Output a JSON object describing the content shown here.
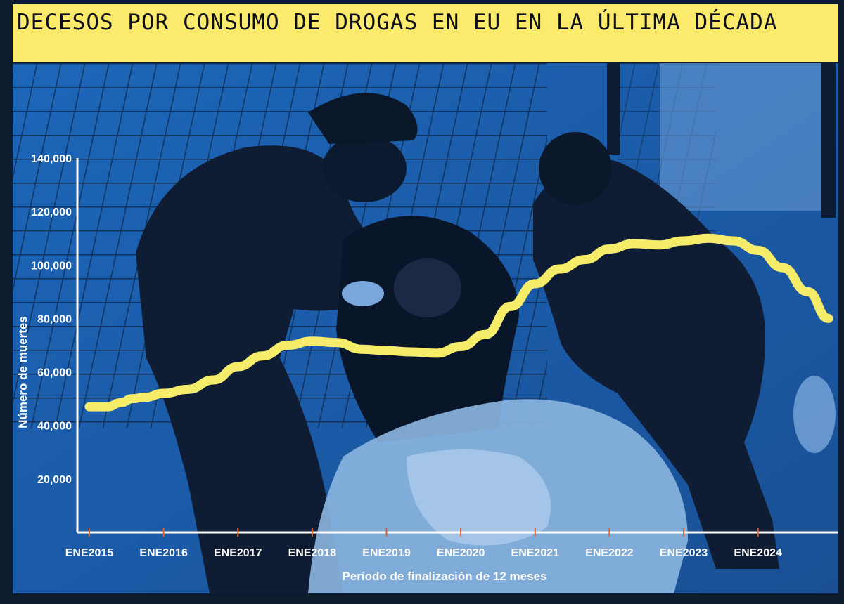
{
  "title": "DECESOS POR CONSUMO DE DROGAS EN EU EN LA ÚLTIMA DÉCADA",
  "colors": {
    "title_band": "#fbea6b",
    "line": "#f5ec6a",
    "axis": "#ffffff",
    "tick_marks": "#e0622a",
    "photo_tint": "#1b5fae"
  },
  "photo": {
    "description_icon": "photo-paramedics-icon"
  },
  "chart_data": {
    "type": "line",
    "title": "DECESOS POR CONSUMO DE DROGAS EN EU EN LA ÚLTIMA DÉCADA",
    "xlabel": "Período de finalización de 12 meses",
    "ylabel": "Número de muertes",
    "ylim": [
      0,
      140000
    ],
    "y_ticks": [
      {
        "value": 20000,
        "label": "20,000"
      },
      {
        "value": 40000,
        "label": "40,000"
      },
      {
        "value": 60000,
        "label": "60,000"
      },
      {
        "value": 80000,
        "label": "80,000"
      },
      {
        "value": 100000,
        "label": "100,000"
      },
      {
        "value": 120000,
        "label": "120,000"
      },
      {
        "value": 140000,
        "label": "140,000"
      }
    ],
    "x_ticks": [
      {
        "value": 2015.0,
        "label": "ENE2015"
      },
      {
        "value": 2016.0,
        "label": "ENE2016"
      },
      {
        "value": 2017.0,
        "label": "ENE2017"
      },
      {
        "value": 2018.0,
        "label": "ENE2018"
      },
      {
        "value": 2019.0,
        "label": "ENE2019"
      },
      {
        "value": 2020.0,
        "label": "ENE2020"
      },
      {
        "value": 2021.0,
        "label": "ENE2021"
      },
      {
        "value": 2022.0,
        "label": "ENE2022"
      },
      {
        "value": 2023.0,
        "label": "ENE2023"
      },
      {
        "value": 2024.0,
        "label": "ENE2024"
      }
    ],
    "xlim": [
      2015.0,
      2024.95
    ],
    "grid": false,
    "series": [
      {
        "points": [
          [
            2015.0,
            47000
          ],
          [
            2015.25,
            47000
          ],
          [
            2015.42,
            48500
          ],
          [
            2015.58,
            50000
          ],
          [
            2015.75,
            50500
          ],
          [
            2016.0,
            52000
          ],
          [
            2016.33,
            53500
          ],
          [
            2016.67,
            57000
          ],
          [
            2017.0,
            62000
          ],
          [
            2017.33,
            66000
          ],
          [
            2017.67,
            70000
          ],
          [
            2018.0,
            71500
          ],
          [
            2018.33,
            71000
          ],
          [
            2018.67,
            68500
          ],
          [
            2019.0,
            68000
          ],
          [
            2019.33,
            67500
          ],
          [
            2019.67,
            67000
          ],
          [
            2020.0,
            69500
          ],
          [
            2020.33,
            74000
          ],
          [
            2020.67,
            84500
          ],
          [
            2021.0,
            93000
          ],
          [
            2021.33,
            98500
          ],
          [
            2021.67,
            102000
          ],
          [
            2022.0,
            106000
          ],
          [
            2022.33,
            108000
          ],
          [
            2022.67,
            107500
          ],
          [
            2023.0,
            109000
          ],
          [
            2023.33,
            110000
          ],
          [
            2023.67,
            109000
          ],
          [
            2024.0,
            105500
          ],
          [
            2024.33,
            99000
          ],
          [
            2024.67,
            90000
          ],
          [
            2024.95,
            80000
          ]
        ]
      }
    ]
  }
}
